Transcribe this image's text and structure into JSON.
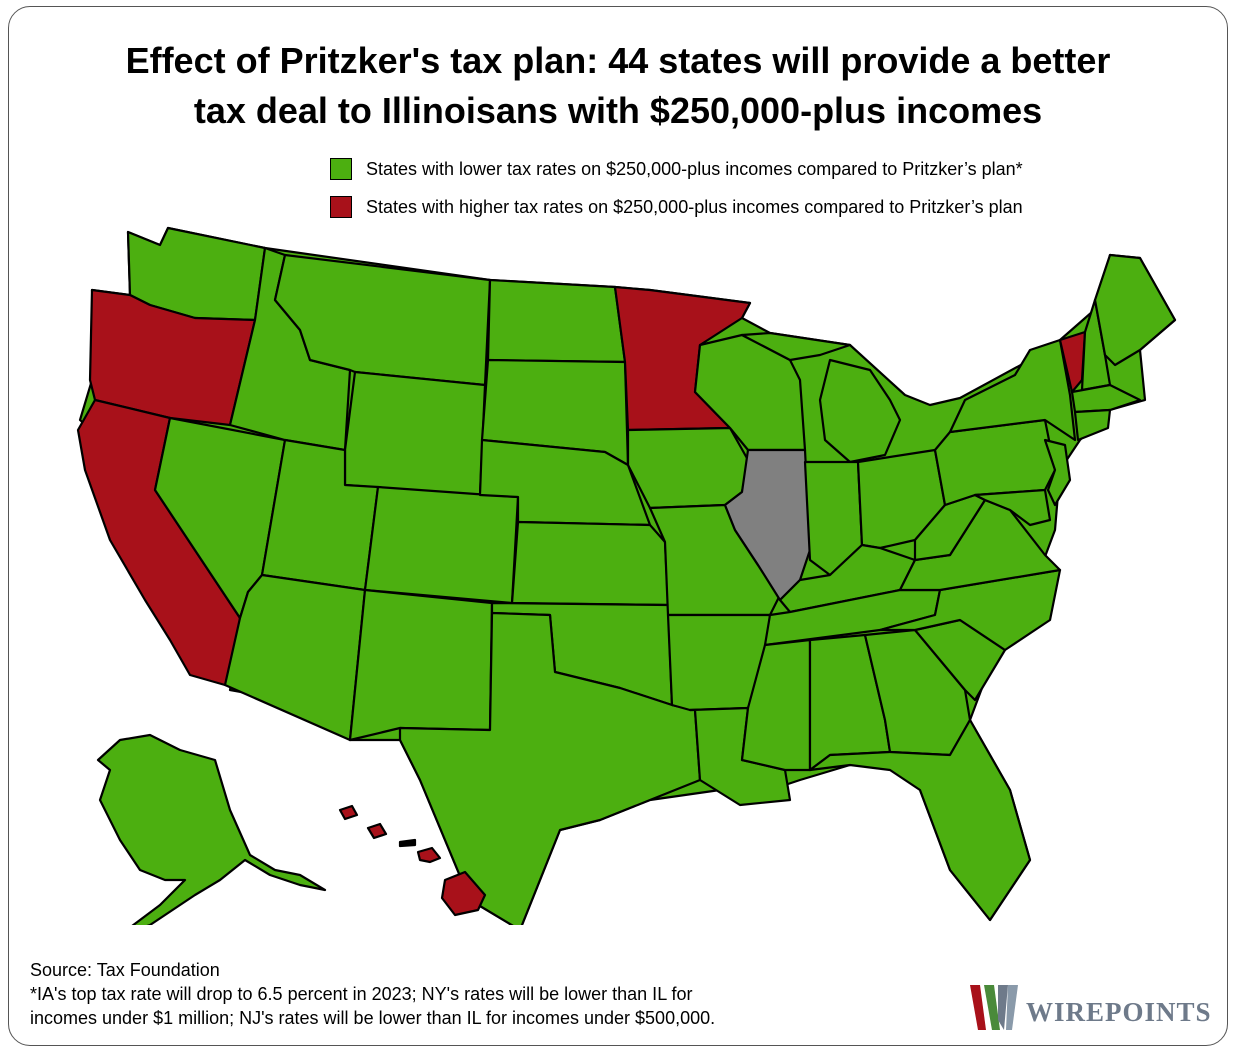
{
  "title": {
    "line1": "Effect of Pritzker's tax plan: 44 states will provide a better",
    "line2": "tax deal to Illinoisans with $250,000-plus incomes"
  },
  "legend": {
    "lower": {
      "label": "States with lower tax rates on $250,000-plus incomes compared to Pritzker’s plan*",
      "color": "#4caf10"
    },
    "higher": {
      "label": "States with higher tax rates on $250,000-plus incomes compared to Pritzker’s plan",
      "color": "#a8111a"
    }
  },
  "colors": {
    "lower": "#4caf10",
    "higher": "#a8111a",
    "illinois": "#808080"
  },
  "states": {
    "higher": [
      "Oregon",
      "California",
      "Minnesota",
      "Vermont",
      "Hawaii"
    ],
    "reference": [
      "Illinois"
    ]
  },
  "footer": {
    "source": "Source: Tax Foundation",
    "note1": "*IA's top tax rate will drop to 6.5 percent in 2023; NY's rates will be lower than IL for",
    "note2": "incomes under $1 million; NJ's rates will be lower than IL for incomes under $500,000."
  },
  "logo": {
    "text": "WIREPOINTS",
    "color": "#6e7a8a"
  }
}
